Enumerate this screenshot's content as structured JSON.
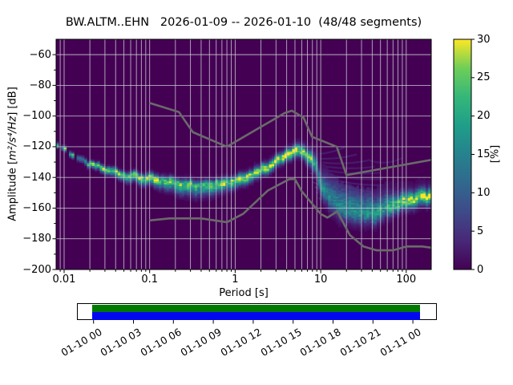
{
  "title": "BW.ALTM..EHN   2026-01-09 -- 2026-01-10  (48/48 segments)",
  "axes": {
    "xlabel": "Period [s]",
    "ylabel_prefix": "Amplitude [",
    "ylabel_math": "m²/s⁴/Hz",
    "ylabel_suffix": "] [dB]",
    "xscale": "log",
    "xlim": [
      0.00806,
      196.0
    ],
    "ylim": [
      -200,
      -50
    ],
    "xticks": {
      "values": [
        0.01,
        0.1,
        1,
        10,
        100
      ],
      "labels": [
        "0.01",
        "0.1",
        "1",
        "10",
        "100"
      ]
    },
    "yticks": {
      "values": [
        -60,
        -80,
        -100,
        -120,
        -140,
        -160,
        -180,
        -200
      ],
      "labels": [
        "−60",
        "−80",
        "−100",
        "−120",
        "−140",
        "−160",
        "−180",
        "−200"
      ]
    },
    "grid_color": "#c8c8c8"
  },
  "colorbar": {
    "label": "[%]",
    "range": [
      0,
      30
    ],
    "colormap": "viridis",
    "ticks": {
      "values": [
        0,
        5,
        10,
        15,
        20,
        25,
        30
      ],
      "labels": [
        "0",
        "5",
        "10",
        "15",
        "20",
        "25",
        "30"
      ]
    },
    "stops": [
      [
        0,
        "#440154"
      ],
      [
        3.75,
        "#482878"
      ],
      [
        7.5,
        "#3e4a89"
      ],
      [
        11.25,
        "#31688e"
      ],
      [
        15,
        "#26828e"
      ],
      [
        18.75,
        "#1f9e89"
      ],
      [
        22.5,
        "#35b779"
      ],
      [
        26.25,
        "#6ece58"
      ],
      [
        30,
        "#fde725"
      ]
    ]
  },
  "chart_data": {
    "type": "heatmap",
    "title": "BW.ALTM..EHN   2026-01-09 -- 2026-01-10  (48/48 segments)",
    "xlabel": "Period [s]",
    "ylabel": "Amplitude [m²/s⁴/Hz] [dB]",
    "background": "#440154",
    "noise_model_color": "#6a6a6a",
    "psd_mode_curve": {
      "log10_period": [
        -2.094,
        -2.0,
        -1.93,
        -1.87,
        -1.8,
        -1.7,
        -1.6,
        -1.5,
        -1.4,
        -1.3,
        -1.2,
        -1.1,
        -1.0,
        -0.9,
        -0.8,
        -0.7,
        -0.6,
        -0.5,
        -0.42,
        -0.35,
        -0.28,
        -0.2,
        -0.1,
        0.0,
        0.1,
        0.2,
        0.3,
        0.4,
        0.5,
        0.6,
        0.68,
        0.75,
        0.8,
        0.85,
        0.9,
        0.95,
        1.0,
        1.05,
        1.1,
        1.2,
        1.3,
        1.42,
        1.52,
        1.62,
        1.72,
        1.82,
        1.92,
        2.02,
        2.12,
        2.22,
        2.293
      ],
      "db": [
        -117.5,
        -121,
        -124,
        -126.5,
        -128.5,
        -131,
        -133,
        -134.8,
        -136.4,
        -138,
        -139,
        -139.8,
        -140.6,
        -141.6,
        -142.6,
        -143.4,
        -144.2,
        -144.8,
        -145.6,
        -144.8,
        -144.2,
        -143.6,
        -143,
        -141.8,
        -140,
        -137.8,
        -135.2,
        -132.2,
        -128.8,
        -125.6,
        -123.5,
        -122.5,
        -123.5,
        -125.5,
        -128.5,
        -133,
        -144,
        -149,
        -153,
        -158,
        -160.5,
        -162.5,
        -163.8,
        -163.4,
        -161.4,
        -158.8,
        -156.6,
        -155,
        -153.6,
        -152.4,
        -151.6
      ]
    },
    "peak_percent": [
      [
        -2.094,
        29
      ],
      [
        -1.9,
        28
      ],
      [
        -1.87,
        12
      ],
      [
        -1.76,
        14
      ],
      [
        -1.7,
        26
      ],
      [
        -1.3,
        26
      ],
      [
        -1.0,
        26
      ],
      [
        -0.7,
        23
      ],
      [
        -0.5,
        21
      ],
      [
        -0.35,
        22
      ],
      [
        -0.2,
        25
      ],
      [
        0.0,
        26
      ],
      [
        0.3,
        27
      ],
      [
        0.55,
        28
      ],
      [
        0.75,
        29
      ],
      [
        0.85,
        23
      ],
      [
        0.95,
        16
      ],
      [
        1.05,
        12
      ],
      [
        1.2,
        11.5
      ],
      [
        1.4,
        13
      ],
      [
        1.55,
        14
      ],
      [
        1.7,
        16
      ],
      [
        1.8,
        19
      ],
      [
        1.9,
        22
      ],
      [
        2.0,
        25
      ],
      [
        2.1,
        27
      ],
      [
        2.293,
        27
      ]
    ],
    "sigma_above": [
      [
        -2.094,
        0.9
      ],
      [
        -1.7,
        1.1
      ],
      [
        -1.3,
        1.5
      ],
      [
        -1.0,
        1.7
      ],
      [
        -0.6,
        2.0
      ],
      [
        -0.2,
        1.9
      ],
      [
        0.2,
        2.0
      ],
      [
        0.6,
        2.2
      ],
      [
        0.8,
        2.4
      ],
      [
        0.95,
        3.2
      ],
      [
        1.05,
        5.5
      ],
      [
        1.2,
        7.5
      ],
      [
        1.4,
        7.5
      ],
      [
        1.6,
        6.5
      ],
      [
        1.75,
        5.0
      ],
      [
        1.9,
        3.6
      ],
      [
        2.1,
        3.0
      ],
      [
        2.293,
        3.0
      ]
    ],
    "sigma_below": [
      [
        -2.094,
        1.1
      ],
      [
        -1.7,
        1.5
      ],
      [
        -1.3,
        2.2
      ],
      [
        -1.0,
        2.7
      ],
      [
        -0.75,
        3.4
      ],
      [
        -0.5,
        4.0
      ],
      [
        -0.3,
        3.6
      ],
      [
        -0.1,
        3.0
      ],
      [
        0.2,
        2.5
      ],
      [
        0.6,
        2.2
      ],
      [
        0.8,
        2.7
      ],
      [
        0.95,
        3.6
      ],
      [
        1.1,
        4.6
      ],
      [
        1.3,
        4.4
      ],
      [
        1.5,
        4.0
      ],
      [
        1.7,
        3.7
      ],
      [
        1.9,
        3.4
      ],
      [
        2.1,
        3.3
      ],
      [
        2.293,
        3.3
      ]
    ],
    "halo_percent": [
      [
        -2.094,
        0
      ],
      [
        -1.0,
        0.8
      ],
      [
        -0.5,
        1.4
      ],
      [
        0.0,
        1.1
      ],
      [
        0.6,
        1.2
      ],
      [
        0.9,
        2.0
      ],
      [
        1.05,
        3.2
      ],
      [
        1.3,
        3.4
      ],
      [
        1.6,
        3.0
      ],
      [
        1.9,
        2.4
      ],
      [
        2.293,
        2.2
      ]
    ],
    "fan_lines": [
      [
        0.72,
        -124,
        1.28,
        -120.5,
        0.3
      ],
      [
        0.75,
        -126,
        1.42,
        -125,
        0.3
      ],
      [
        0.78,
        -128,
        1.55,
        -129,
        0.28
      ],
      [
        0.8,
        -130,
        1.63,
        -133,
        0.28
      ],
      [
        0.82,
        -132,
        1.69,
        -137,
        0.28
      ],
      [
        0.85,
        -134.5,
        1.73,
        -141,
        0.28
      ],
      [
        0.87,
        -137,
        1.74,
        -145,
        0.3
      ],
      [
        0.89,
        -140,
        1.68,
        -149,
        0.3
      ],
      [
        0.91,
        -143,
        1.58,
        -153,
        0.32
      ],
      [
        0.93,
        -146,
        1.47,
        -156,
        0.32
      ],
      [
        0.95,
        -149.5,
        1.36,
        -158,
        0.3
      ],
      [
        0.97,
        -153,
        1.25,
        -159.5,
        0.28
      ],
      [
        1.9,
        -144.5,
        2.293,
        -144,
        0.45
      ],
      [
        1.95,
        -148.5,
        2.293,
        -148,
        0.45
      ],
      [
        1.55,
        -128.5,
        1.95,
        -127.5,
        0.25
      ]
    ],
    "noise_models": {
      "nhnm": [
        [
          0.1,
          -91.5
        ],
        [
          0.22,
          -97.4
        ],
        [
          0.32,
          -110.5
        ],
        [
          0.8,
          -120.0
        ],
        [
          3.8,
          -98.0
        ],
        [
          4.6,
          -96.5
        ],
        [
          6.3,
          -101.0
        ],
        [
          7.9,
          -113.5
        ],
        [
          15.4,
          -120.0
        ],
        [
          20.0,
          -138.5
        ],
        [
          354.8,
          -126.0
        ]
      ],
      "nlnm": [
        [
          0.1,
          -168.0
        ],
        [
          0.17,
          -166.7
        ],
        [
          0.4,
          -166.7
        ],
        [
          0.8,
          -169.2
        ],
        [
          1.24,
          -163.7
        ],
        [
          2.4,
          -148.6
        ],
        [
          4.3,
          -141.1
        ],
        [
          5.0,
          -141.1
        ],
        [
          6.0,
          -149.0
        ],
        [
          10.0,
          -163.8
        ],
        [
          12.0,
          -166.2
        ],
        [
          15.6,
          -162.1
        ],
        [
          21.9,
          -177.5
        ],
        [
          31.6,
          -185.0
        ],
        [
          45.0,
          -187.5
        ],
        [
          70.0,
          -187.5
        ],
        [
          101.0,
          -185.0
        ],
        [
          154.0,
          -185.0
        ],
        [
          328.0,
          -187.5
        ]
      ]
    }
  },
  "timeline": {
    "labels": [
      "01-10 00",
      "01-10 03",
      "01-10 06",
      "01-10 09",
      "01-10 12",
      "01-10 15",
      "01-10 18",
      "01-10 21",
      "01-11 00"
    ],
    "hours": [
      0,
      3,
      6,
      9,
      12,
      15,
      18,
      21,
      24
    ],
    "bar_colors": {
      "green": "#007a00",
      "blue": "#0008ee"
    }
  }
}
